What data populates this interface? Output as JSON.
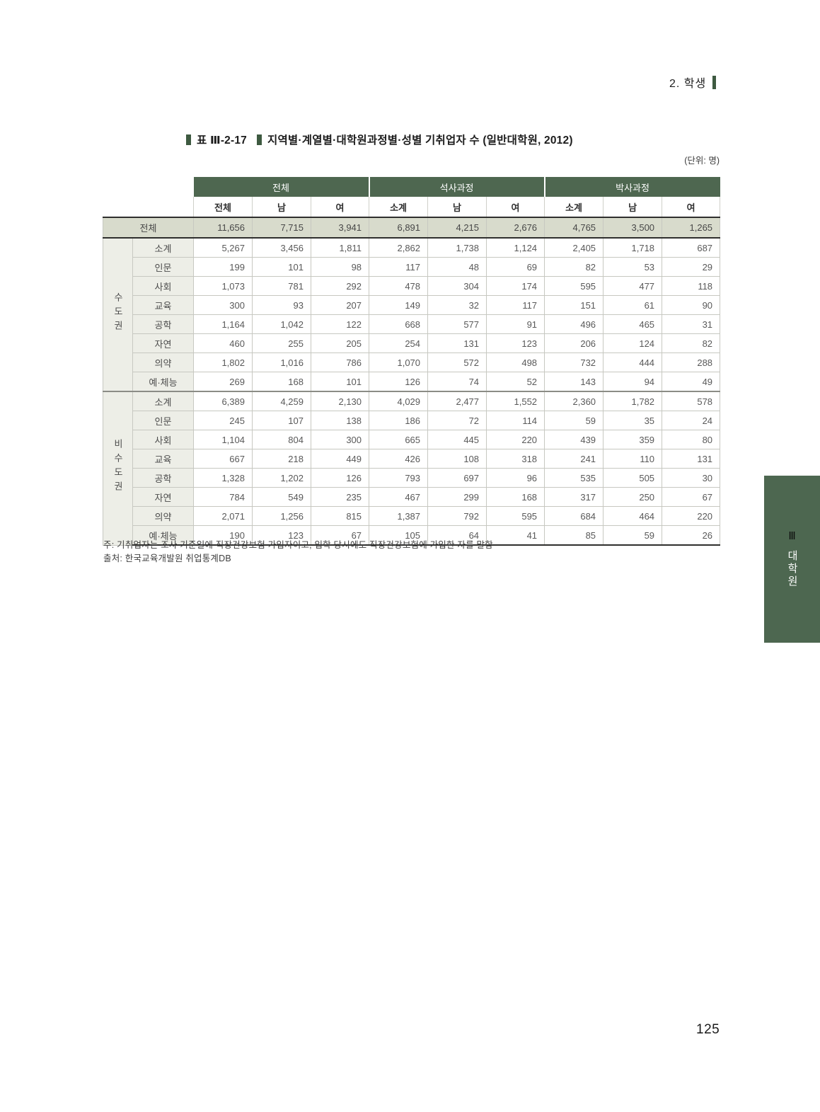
{
  "page": {
    "running_head": "2. 학생",
    "page_number": "125",
    "side_tab": {
      "numeral": "Ⅲ",
      "label": "대학원"
    }
  },
  "table": {
    "title_prefix": "표 Ⅲ-2-17",
    "title": "지역별·계열별·대학원과정별·성별 기취업자 수 (일반대학원, 2012)",
    "unit": "(단위: 명)",
    "col_groups": [
      "전체",
      "석사과정",
      "박사과정"
    ],
    "col_headers": [
      "전체",
      "남",
      "여",
      "소계",
      "남",
      "여",
      "소계",
      "남",
      "여"
    ],
    "total_row": {
      "label": "전체",
      "values": [
        "11,656",
        "7,715",
        "3,941",
        "6,891",
        "4,215",
        "2,676",
        "4,765",
        "3,500",
        "1,265"
      ]
    },
    "groups": [
      {
        "region": "수도권",
        "rows": [
          {
            "label": "소계",
            "values": [
              "5,267",
              "3,456",
              "1,811",
              "2,862",
              "1,738",
              "1,124",
              "2,405",
              "1,718",
              "687"
            ]
          },
          {
            "label": "인문",
            "values": [
              "199",
              "101",
              "98",
              "117",
              "48",
              "69",
              "82",
              "53",
              "29"
            ]
          },
          {
            "label": "사회",
            "values": [
              "1,073",
              "781",
              "292",
              "478",
              "304",
              "174",
              "595",
              "477",
              "118"
            ]
          },
          {
            "label": "교육",
            "values": [
              "300",
              "93",
              "207",
              "149",
              "32",
              "117",
              "151",
              "61",
              "90"
            ]
          },
          {
            "label": "공학",
            "values": [
              "1,164",
              "1,042",
              "122",
              "668",
              "577",
              "91",
              "496",
              "465",
              "31"
            ]
          },
          {
            "label": "자연",
            "values": [
              "460",
              "255",
              "205",
              "254",
              "131",
              "123",
              "206",
              "124",
              "82"
            ]
          },
          {
            "label": "의약",
            "values": [
              "1,802",
              "1,016",
              "786",
              "1,070",
              "572",
              "498",
              "732",
              "444",
              "288"
            ]
          },
          {
            "label": "예·체능",
            "values": [
              "269",
              "168",
              "101",
              "126",
              "74",
              "52",
              "143",
              "94",
              "49"
            ]
          }
        ]
      },
      {
        "region": "비수도권",
        "rows": [
          {
            "label": "소계",
            "values": [
              "6,389",
              "4,259",
              "2,130",
              "4,029",
              "2,477",
              "1,552",
              "2,360",
              "1,782",
              "578"
            ]
          },
          {
            "label": "인문",
            "values": [
              "245",
              "107",
              "138",
              "186",
              "72",
              "114",
              "59",
              "35",
              "24"
            ]
          },
          {
            "label": "사회",
            "values": [
              "1,104",
              "804",
              "300",
              "665",
              "445",
              "220",
              "439",
              "359",
              "80"
            ]
          },
          {
            "label": "교육",
            "values": [
              "667",
              "218",
              "449",
              "426",
              "108",
              "318",
              "241",
              "110",
              "131"
            ]
          },
          {
            "label": "공학",
            "values": [
              "1,328",
              "1,202",
              "126",
              "793",
              "697",
              "96",
              "535",
              "505",
              "30"
            ]
          },
          {
            "label": "자연",
            "values": [
              "784",
              "549",
              "235",
              "467",
              "299",
              "168",
              "317",
              "250",
              "67"
            ]
          },
          {
            "label": "의약",
            "values": [
              "2,071",
              "1,256",
              "815",
              "1,387",
              "792",
              "595",
              "684",
              "464",
              "220"
            ]
          },
          {
            "label": "예·체능",
            "values": [
              "190",
              "123",
              "67",
              "105",
              "64",
              "41",
              "85",
              "59",
              "26"
            ]
          }
        ]
      }
    ],
    "notes": [
      "주: 기취업자는 조사 기준일에 직장건강보험 가입자이고, 입학 당시에도 직장건강보험에 가입한 자를 말함",
      "출처: 한국교육개발원 취업통계DB"
    ]
  },
  "colors": {
    "header_green": "#4e6750",
    "accent_bar_green": "#3e5a41",
    "total_row_bg": "#d8dbcc",
    "label_cell_bg": "#edeee7"
  }
}
